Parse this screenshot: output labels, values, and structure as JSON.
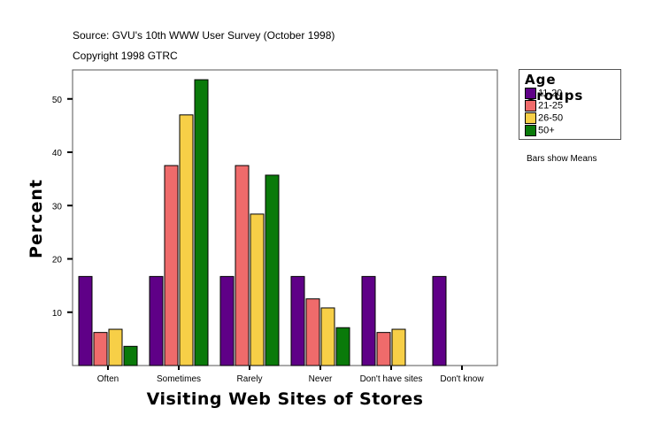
{
  "header": {
    "source": "Source: GVU's 10th WWW User Survey (October 1998)",
    "copyright": "Copyright 1998 GTRC"
  },
  "note": "Bars show Means",
  "chart_data": {
    "type": "bar",
    "title": "Source: GVU's 10th WWW User Survey (October 1998)",
    "subtitle": "Copyright 1998 GTRC",
    "xlabel": "Visiting Web Sites of Stores",
    "ylabel": "Percent",
    "ylim": [
      0,
      55.5
    ],
    "yticks": [
      10,
      20,
      30,
      40,
      50
    ],
    "grid": false,
    "legend_title": "Age Groups",
    "legend_position": "right",
    "annotation": "Bars show Means",
    "categories": [
      "Often",
      "Sometimes",
      "Rarely",
      "Never",
      "Don't have sites",
      "Don't know"
    ],
    "series": [
      {
        "name": "11-20",
        "color": "#5f0087",
        "values": [
          16.7,
          16.7,
          16.7,
          16.7,
          16.7,
          16.7
        ]
      },
      {
        "name": "21-25",
        "color": "#ef6b6b",
        "values": [
          6.2,
          37.5,
          37.5,
          12.5,
          6.2,
          0
        ]
      },
      {
        "name": "26-50",
        "color": "#f7cf47",
        "values": [
          6.8,
          47.0,
          28.4,
          10.8,
          6.8,
          0
        ]
      },
      {
        "name": "50+",
        "color": "#0a7a0a",
        "values": [
          3.6,
          53.6,
          35.7,
          7.1,
          0,
          0
        ]
      }
    ]
  }
}
